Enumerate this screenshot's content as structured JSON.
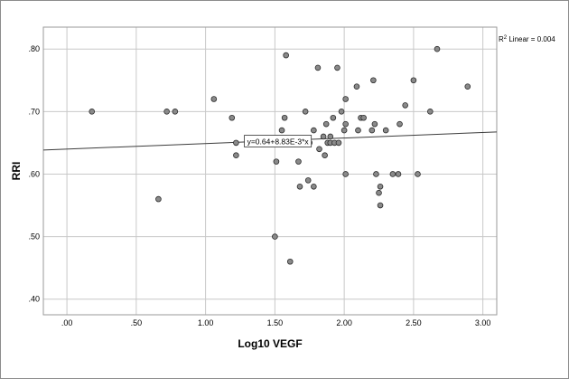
{
  "chart_data": {
    "type": "scatter",
    "xlabel": "Log10 VEGF",
    "ylabel": "RRI",
    "xlim": [
      -0.17,
      3.1
    ],
    "ylim": [
      0.375,
      0.835
    ],
    "x_ticks": [
      0,
      0.5,
      1,
      1.5,
      2,
      2.5,
      3
    ],
    "x_tick_labels": [
      ".00",
      ".50",
      "1.00",
      "1.50",
      "2.00",
      "2.50",
      "3.00"
    ],
    "y_ticks": [
      0.4,
      0.5,
      0.6,
      0.7,
      0.8
    ],
    "y_tick_labels": [
      ".40",
      ".50",
      ".60",
      ".70",
      ".80"
    ],
    "grid": true,
    "points": [
      [
        0.18,
        0.7
      ],
      [
        0.66,
        0.56
      ],
      [
        0.72,
        0.7
      ],
      [
        0.78,
        0.7
      ],
      [
        1.06,
        0.72
      ],
      [
        1.19,
        0.69
      ],
      [
        1.22,
        0.65
      ],
      [
        1.22,
        0.63
      ],
      [
        1.5,
        0.5
      ],
      [
        1.51,
        0.62
      ],
      [
        1.55,
        0.67
      ],
      [
        1.57,
        0.69
      ],
      [
        1.58,
        0.79
      ],
      [
        1.61,
        0.46
      ],
      [
        1.67,
        0.62
      ],
      [
        1.68,
        0.58
      ],
      [
        1.72,
        0.7
      ],
      [
        1.74,
        0.59
      ],
      [
        1.75,
        0.65
      ],
      [
        1.78,
        0.67
      ],
      [
        1.78,
        0.58
      ],
      [
        1.81,
        0.77
      ],
      [
        1.82,
        0.64
      ],
      [
        1.85,
        0.66
      ],
      [
        1.86,
        0.63
      ],
      [
        1.87,
        0.68
      ],
      [
        1.88,
        0.65
      ],
      [
        1.9,
        0.66
      ],
      [
        1.9,
        0.65
      ],
      [
        1.92,
        0.69
      ],
      [
        1.93,
        0.65
      ],
      [
        1.95,
        0.77
      ],
      [
        1.96,
        0.65
      ],
      [
        1.98,
        0.7
      ],
      [
        2.0,
        0.67
      ],
      [
        2.01,
        0.72
      ],
      [
        2.01,
        0.68
      ],
      [
        2.01,
        0.6
      ],
      [
        2.09,
        0.74
      ],
      [
        2.1,
        0.67
      ],
      [
        2.12,
        0.69
      ],
      [
        2.14,
        0.69
      ],
      [
        2.2,
        0.67
      ],
      [
        2.21,
        0.75
      ],
      [
        2.22,
        0.68
      ],
      [
        2.23,
        0.6
      ],
      [
        2.25,
        0.57
      ],
      [
        2.26,
        0.58
      ],
      [
        2.26,
        0.55
      ],
      [
        2.3,
        0.67
      ],
      [
        2.35,
        0.6
      ],
      [
        2.39,
        0.6
      ],
      [
        2.4,
        0.68
      ],
      [
        2.44,
        0.71
      ],
      [
        2.5,
        0.75
      ],
      [
        2.53,
        0.6
      ],
      [
        2.62,
        0.7
      ],
      [
        2.67,
        0.8
      ],
      [
        2.89,
        0.74
      ]
    ],
    "fit_line": {
      "intercept": 0.64,
      "slope": 0.00883
    },
    "fit_equation_label": "y=0.64+8.83E-3*x",
    "r2_legend_prefix": "R",
    "r2_legend_sup": "2",
    "r2_legend_suffix": " Linear = 0.004",
    "marker_fill": "#8a8a8a",
    "marker_stroke": "#2b2b2b",
    "grid_color": "#c8c8c8",
    "line_color": "#3c3c3c"
  }
}
